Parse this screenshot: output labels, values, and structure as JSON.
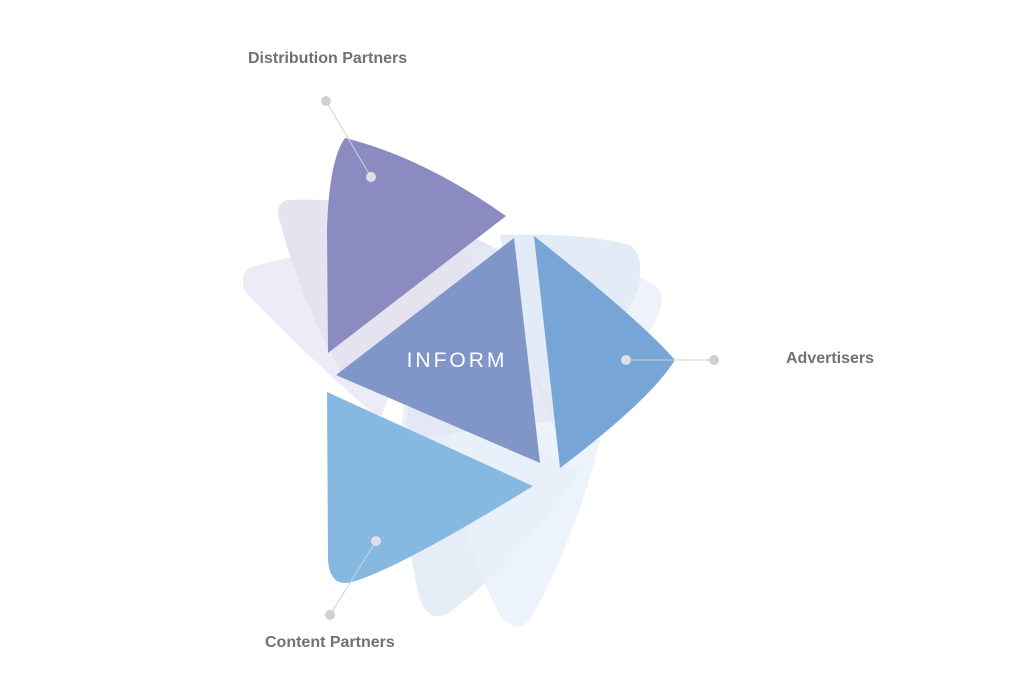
{
  "labels": {
    "distribution": "Distribution Partners",
    "advertisers": "Advertisers",
    "content": "Content Partners"
  },
  "center": {
    "text": "INFORM"
  },
  "colors": {
    "distribution": "#8c8bc1",
    "center": "#8096c9",
    "advertisers": "#77a6d6",
    "content": "#86b9e2",
    "label": "#6f7179",
    "connector": "#d0d0d6"
  }
}
